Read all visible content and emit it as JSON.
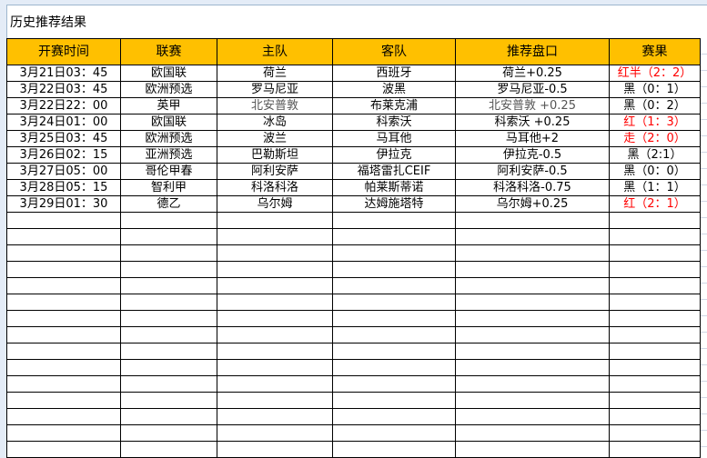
{
  "title": "历史推荐结果",
  "headers": [
    "开赛时间",
    "联赛",
    "主队",
    "客队",
    "推荐盘口",
    "赛果"
  ],
  "rows": [
    [
      "3月21日03：45",
      "欧国联",
      "荷兰",
      "西班牙",
      "荷兰+0.25",
      "红半（2：2）"
    ],
    [
      "3月22日03：45",
      "欧洲预选",
      "罗马尼亚",
      "波黑",
      "罗马尼亚-0.5",
      "黑（0：1）"
    ],
    [
      "3月22日22：00",
      "英甲",
      "北安普敦",
      "布莱克浦",
      "北安普敦 +0.25",
      "黑（0：2）"
    ],
    [
      "3月24日01：00",
      "欧国联",
      "冰岛",
      "科索沃",
      "科索沃 +0.25",
      "红（1：3）"
    ],
    [
      "3月25日03：45",
      "欧洲预选",
      "波兰",
      "马耳他",
      "马耳他+2",
      "走（2：0）"
    ],
    [
      "3月26日02：15",
      "亚洲预选",
      "巴勒斯坦",
      "伊拉克",
      "伊拉克-0.5",
      "黑（2:1）"
    ],
    [
      "3月27日05：00",
      "哥伦甲春",
      "阿利安萨",
      "福塔雷扎CEIF",
      "阿利安萨-0.5",
      "黑（0：0）"
    ],
    [
      "3月28日05：15",
      "智利甲",
      "科洛科洛",
      "帕莱斯蒂诺",
      "科洛科洛-0.75",
      "黑（1：1）"
    ],
    [
      "3月29日01：30",
      "德乙",
      "乌尔姆",
      "达姆施塔特",
      "乌尔姆+0.25",
      "红（2：1）"
    ]
  ],
  "colors": {
    "header_bg": "#ffc000",
    "win": "#ff0000"
  }
}
